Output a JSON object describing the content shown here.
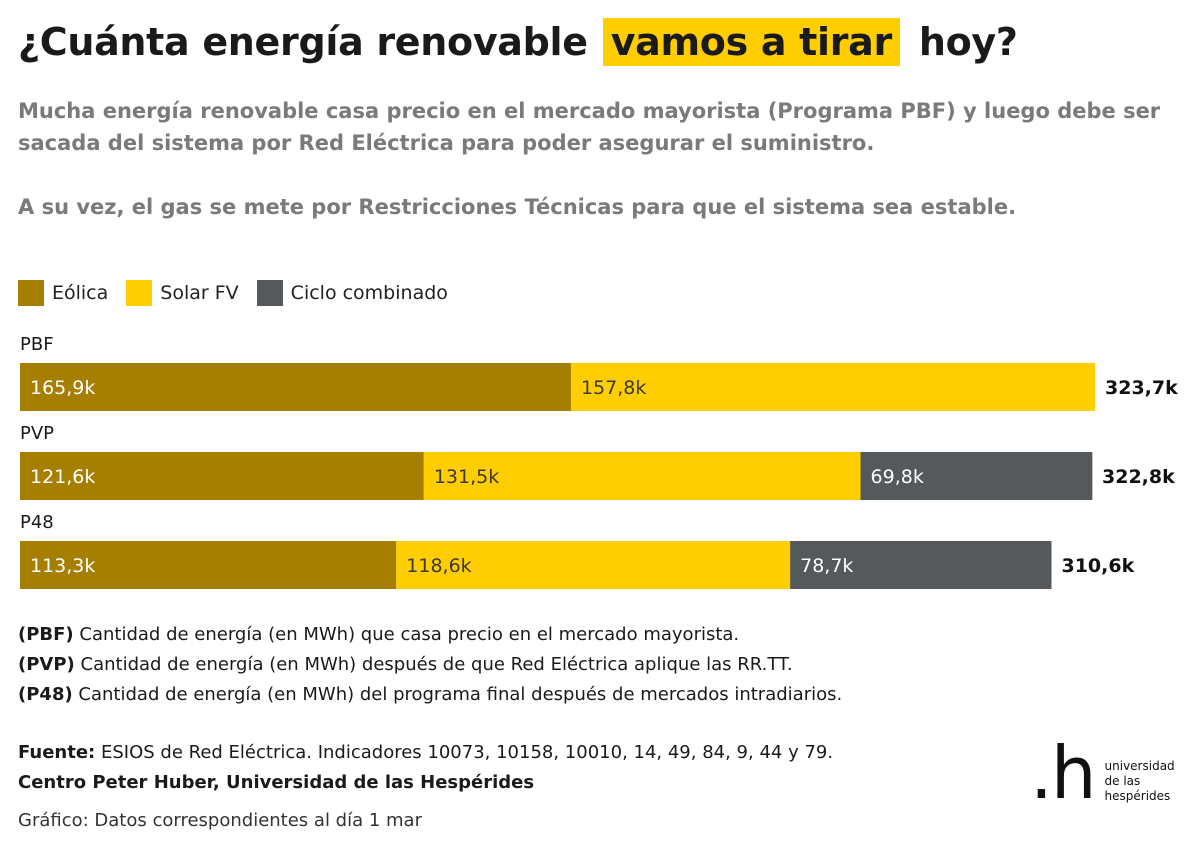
{
  "title": {
    "before": "¿Cuánta energía renovable",
    "highlight": "vamos a tirar",
    "after": "hoy?"
  },
  "subtitle": {
    "p1": "Mucha energía renovable casa precio en el mercado mayorista (Programa PBF) y luego debe ser sacada del sistema por Red Eléctrica para poder asegurar el suministro.",
    "p2": "A su vez, el gas se mete por Restricciones Técnicas para que el sistema sea estable."
  },
  "legend": [
    {
      "label": "Eólica",
      "color": "#a67f00"
    },
    {
      "label": "Solar FV",
      "color": "#ffcd00"
    },
    {
      "label": "Ciclo combinado",
      "color": "#55595c"
    }
  ],
  "chart_data": {
    "type": "bar",
    "orientation": "horizontal",
    "stacked": true,
    "unit": "MWh",
    "categories": [
      "PBF",
      "PVP",
      "P48"
    ],
    "series": [
      {
        "name": "Eólica",
        "color": "#a67f00",
        "values": [
          165900,
          121600,
          113300
        ],
        "labels": [
          "165,9k",
          "121,6k",
          "113,3k"
        ]
      },
      {
        "name": "Solar FV",
        "color": "#ffcd00",
        "values": [
          157800,
          131500,
          118600
        ],
        "labels": [
          "157,8k",
          "131,5k",
          "118,6k"
        ]
      },
      {
        "name": "Ciclo combinado",
        "color": "#55595c",
        "values": [
          0,
          69800,
          78700
        ],
        "labels": [
          "",
          "69,8k",
          "78,7k"
        ]
      }
    ],
    "totals": [
      323700,
      322800,
      310600
    ],
    "total_labels": [
      "323,7k",
      "322,8k",
      "310,6k"
    ],
    "xlim": [
      0,
      323700
    ]
  },
  "notes": [
    {
      "tag": "(PBF)",
      "text": " Cantidad de energía (en MWh) que casa precio en el mercado mayorista."
    },
    {
      "tag": "(PVP)",
      "text": " Cantidad de energía (en MWh) después de que Red Eléctrica aplique las RR.TT."
    },
    {
      "tag": "(P48)",
      "text": " Cantidad de energía (en MWh) del programa final después de mercados intradiarios."
    }
  ],
  "source": {
    "label": "Fuente:",
    "text": " ESIOS de Red Eléctrica. Indicadores 10073, 10158, 10010, 14, 49, 84, 9, 44 y 79.",
    "credit": "Centro Peter Huber, Universidad de las Hespérides"
  },
  "footnote": "Gráfico: Datos correspondientes al día 1 mar",
  "logo": {
    "mark": ".h",
    "text": "universidad\nde las\nhespérides"
  }
}
